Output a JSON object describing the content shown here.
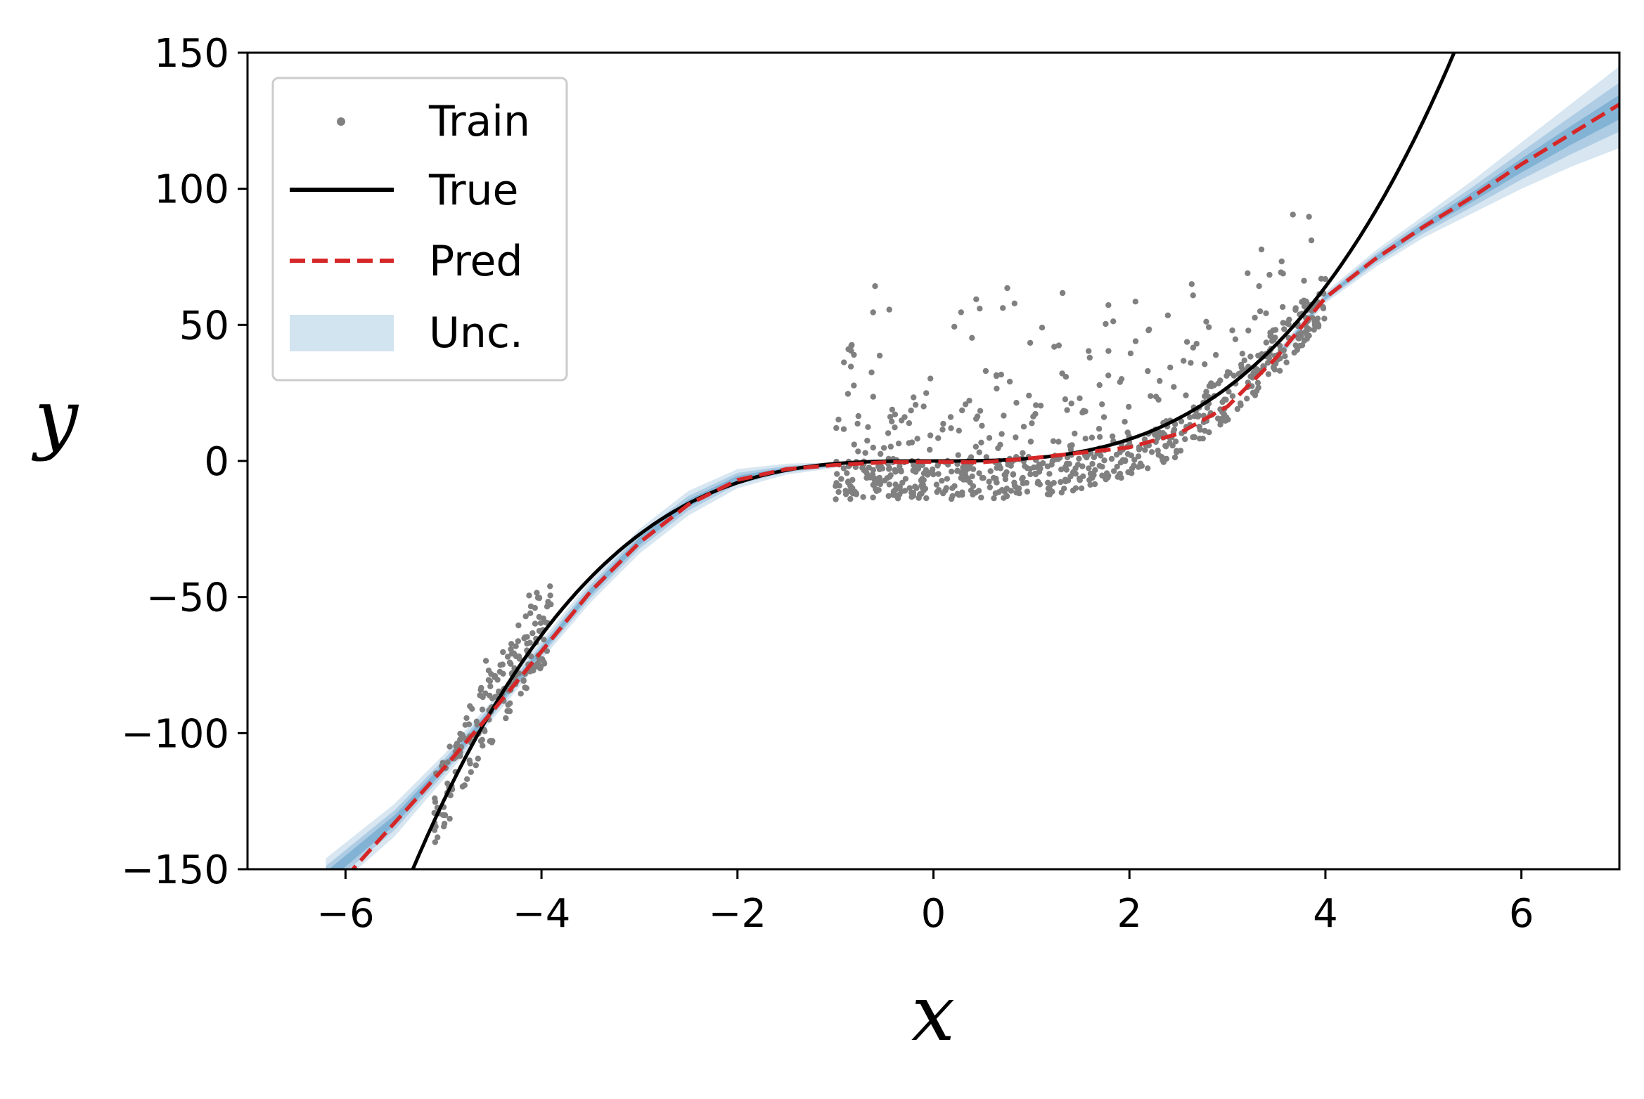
{
  "chart_data": {
    "type": "line",
    "xlabel": "x",
    "ylabel": "y",
    "xlim": [
      -7,
      7
    ],
    "ylim": [
      -150,
      150
    ],
    "xticks": [
      -6,
      -4,
      -2,
      0,
      2,
      4,
      6
    ],
    "yticks": [
      -150,
      -100,
      -50,
      0,
      50,
      100,
      150
    ],
    "xtick_labels": [
      "−6",
      "−4",
      "−2",
      "0",
      "2",
      "4",
      "6"
    ],
    "ytick_labels": [
      "−150",
      "−100",
      "−50",
      "0",
      "50",
      "100",
      "150"
    ],
    "grid": false,
    "legend_position": "top-left",
    "legend": {
      "train": "Train",
      "true": "True",
      "pred": "Pred",
      "unc": "Unc."
    },
    "colors": {
      "train": "#808080",
      "true": "#000000",
      "pred": "#d62728",
      "unc": "#1f77b4"
    },
    "series": [
      {
        "name": "True",
        "style": "solid",
        "function": "x^3",
        "x_range": [
          -5.35,
          5.32
        ]
      },
      {
        "name": "Pred",
        "style": "dashed",
        "x": [
          -6.0,
          -5.5,
          -5.0,
          -4.5,
          -4.0,
          -3.5,
          -3.0,
          -2.5,
          -2.0,
          -1.5,
          -1.0,
          -0.5,
          0.0,
          0.5,
          1.0,
          1.5,
          2.0,
          2.5,
          3.0,
          3.5,
          4.0,
          4.5,
          5.0,
          5.5,
          6.0,
          6.5,
          7.0
        ],
        "y": [
          -153,
          -133,
          -113,
          -92,
          -70,
          -48,
          -30,
          -16,
          -7,
          -3,
          -1.5,
          -0.5,
          -0.3,
          -0.5,
          1,
          3,
          5,
          10,
          20,
          38,
          60,
          74,
          86,
          97,
          109,
          120,
          131
        ]
      },
      {
        "name": "Unc.",
        "type": "band",
        "x": [
          -6.2,
          -5.5,
          -5.0,
          -4.5,
          -4.0,
          -3.5,
          -3.0,
          -2.5,
          -2.0,
          -1.5,
          -1.0,
          3.5,
          4.0,
          4.5,
          5.0,
          5.5,
          6.0,
          6.5,
          7.0
        ],
        "lower": [
          -160,
          -138,
          -117,
          -95,
          -73,
          -52,
          -34,
          -20,
          -10,
          -5,
          -2.5,
          36,
          58,
          71,
          82,
          91,
          100,
          108,
          115
        ],
        "upper": [
          -146,
          -126,
          -108,
          -88,
          -66,
          -44,
          -25,
          -11,
          -3,
          -1,
          -0.5,
          40,
          62,
          77,
          90,
          103,
          117,
          131,
          145
        ]
      },
      {
        "name": "Train",
        "type": "scatter",
        "n_points": 1000,
        "clusters": [
          {
            "x_range": [
              -5.1,
              -3.9
            ],
            "y_trend": "x^3",
            "noise_range": [
              -15,
              40
            ]
          },
          {
            "x_range": [
              -1.0,
              4.0
            ],
            "y_trend": "x^3",
            "noise_range": [
              -15,
              60
            ]
          }
        ]
      }
    ]
  }
}
